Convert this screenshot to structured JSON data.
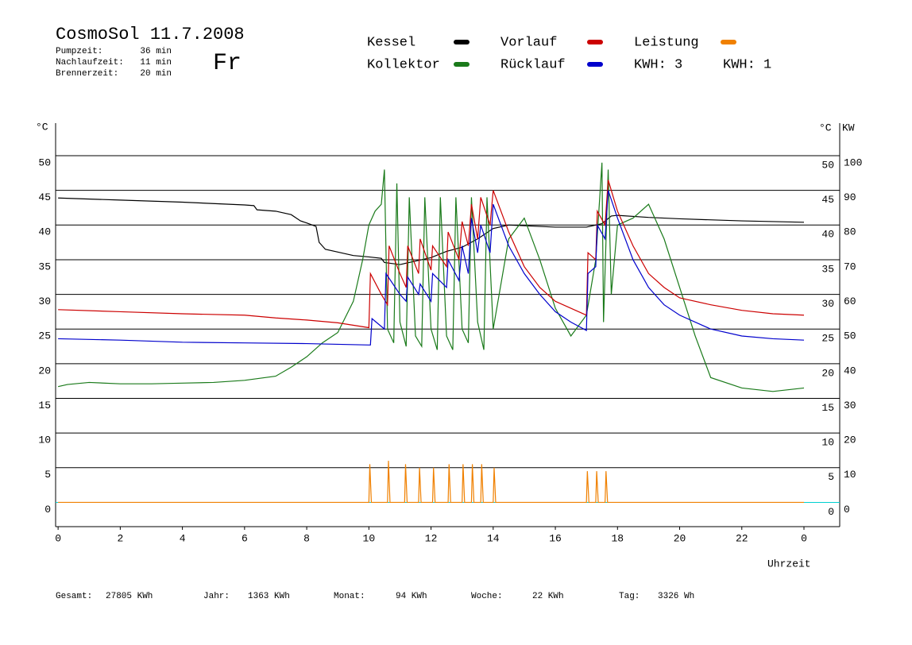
{
  "header": {
    "title": "CosmoSol 11.7.2008",
    "day": "Fr",
    "stats": [
      {
        "label": "Pumpzeit:",
        "value": "36 min"
      },
      {
        "label": "Nachlaufzeit:",
        "value": "11 min"
      },
      {
        "label": "Brennerzeit:",
        "value": "20 min"
      }
    ]
  },
  "footer": [
    {
      "label": "Gesamt:",
      "value": "27805 KWh"
    },
    {
      "label": "Jahr:",
      "value": "1363 KWh"
    },
    {
      "label": "Monat:",
      "value": "94 KWh"
    },
    {
      "label": "Woche:",
      "value": "22 KWh"
    },
    {
      "label": "Tag:",
      "value": "3326 Wh"
    }
  ],
  "chart_data": {
    "type": "line",
    "x_label": "Uhrzeit",
    "y_label": "°C",
    "y2_label": "°C",
    "y2_unit": "KW",
    "kwh_labels": [
      {
        "text": "KWH: 3",
        "color": "#e08a00"
      },
      {
        "text": "KWH: 1",
        "color": "#8a2a9a"
      }
    ],
    "xlim": [
      -0.08,
      25.15
    ],
    "xticks": [
      0,
      2,
      4,
      6,
      8,
      10,
      12,
      14,
      16,
      18,
      20,
      22,
      {
        "value": 24,
        "label": "0"
      }
    ],
    "ylim": [
      -3.5,
      54.7
    ],
    "yticks": [
      0,
      5,
      10,
      15,
      20,
      25,
      30,
      35,
      40,
      45,
      50
    ],
    "y2lim": [
      -7,
      109.4
    ],
    "y2ticks": [
      0,
      10,
      20,
      30,
      40,
      50,
      60,
      70,
      80,
      90,
      100
    ],
    "grid": true,
    "series": [
      {
        "name": "Kessel",
        "color": "#000000",
        "x": [
          0,
          2,
          4,
          6,
          6.3,
          6.4,
          7,
          7.5,
          7.8,
          8,
          8.3,
          8.4,
          8.6,
          9,
          9.5,
          10,
          10.4,
          10.5,
          11,
          11.5,
          12,
          12.5,
          13,
          13.5,
          14,
          14.5,
          16,
          17,
          17.5,
          17.8,
          18,
          19,
          20,
          22,
          24
        ],
        "values": [
          43.9,
          43.6,
          43.3,
          42.9,
          42.8,
          42.2,
          42,
          41.5,
          40.6,
          40.3,
          39.8,
          37.5,
          36.5,
          36.1,
          35.6,
          35.4,
          35.2,
          34.6,
          34.3,
          34.8,
          35.3,
          36.2,
          36.8,
          38,
          39.5,
          40,
          39.7,
          39.7,
          40.2,
          41.3,
          41.4,
          41.1,
          40.9,
          40.6,
          40.4
        ]
      },
      {
        "name": "Kollektor",
        "color": "#1a7a1a",
        "x": [
          0,
          0.3,
          1,
          2,
          3,
          4,
          5,
          6,
          7,
          7.5,
          8,
          8.5,
          9,
          9.5,
          9.8,
          10,
          10.2,
          10.4,
          10.5,
          10.6,
          10.8,
          10.9,
          11,
          11.2,
          11.3,
          11.5,
          11.7,
          11.8,
          12,
          12.2,
          12.3,
          12.5,
          12.7,
          12.8,
          13,
          13.2,
          13.3,
          13.5,
          13.7,
          13.8,
          14,
          14.5,
          15,
          15.5,
          16,
          16.5,
          17,
          17.3,
          17.5,
          17.55,
          17.7,
          17.8,
          18,
          18.5,
          19,
          19.5,
          20,
          20.5,
          21,
          22,
          23,
          24
        ],
        "values": [
          16.7,
          17,
          17.3,
          17.1,
          17.1,
          17.2,
          17.3,
          17.6,
          18.2,
          19.5,
          21,
          23,
          24.5,
          29,
          35,
          40,
          42,
          43,
          48,
          25,
          23,
          46,
          26,
          22.5,
          44,
          24,
          22.5,
          44,
          25,
          22,
          44,
          24,
          22,
          44,
          25,
          23,
          44,
          26,
          22,
          44,
          25,
          38,
          41,
          35,
          28,
          24,
          27,
          35,
          49,
          26,
          48,
          30,
          40,
          41,
          43,
          38,
          31,
          24,
          18,
          16.5,
          16,
          16.5
        ]
      },
      {
        "name": "Vorlauf",
        "color": "#cc0000",
        "x": [
          0,
          2,
          4,
          6,
          7,
          8,
          9,
          10,
          10.05,
          10.4,
          10.6,
          10.65,
          11,
          11.2,
          11.25,
          11.6,
          11.65,
          12,
          12.05,
          12.5,
          12.55,
          12.9,
          13,
          13.2,
          13.3,
          13.5,
          13.6,
          13.9,
          14,
          14.5,
          15,
          15.5,
          16,
          17,
          17.05,
          17.3,
          17.35,
          17.6,
          17.7,
          18,
          18.5,
          19,
          19.5,
          20,
          21,
          22,
          23,
          24
        ],
        "values": [
          27.8,
          27.5,
          27.2,
          27,
          26.6,
          26.3,
          25.9,
          25.2,
          33,
          30,
          28.5,
          37,
          33,
          31,
          37,
          33,
          38,
          33.5,
          37,
          34,
          39,
          35,
          40.5,
          37,
          43,
          38,
          44,
          40,
          45,
          39,
          34,
          31,
          29,
          27,
          36,
          35,
          42,
          40,
          46.5,
          42,
          37,
          33,
          31,
          29.5,
          28.5,
          27.7,
          27.2,
          27
        ]
      },
      {
        "name": "Rücklauf",
        "color": "#0000cc",
        "x": [
          0,
          2,
          4,
          6,
          8,
          10,
          10.05,
          10.1,
          10.5,
          10.55,
          11,
          11.2,
          11.25,
          11.6,
          11.65,
          12,
          12.05,
          12.5,
          12.55,
          12.9,
          13,
          13.2,
          13.3,
          13.5,
          13.6,
          13.9,
          14,
          14.5,
          15,
          15.5,
          16,
          16.5,
          17,
          17.05,
          17.3,
          17.35,
          17.6,
          17.7,
          18,
          18.5,
          19,
          19.5,
          20,
          21,
          22,
          23,
          24
        ],
        "values": [
          23.6,
          23.4,
          23.1,
          23,
          22.9,
          22.7,
          22.7,
          26.5,
          25,
          33,
          30,
          29,
          32.5,
          30,
          31.5,
          29,
          33,
          31,
          35,
          32,
          37,
          33,
          41,
          36,
          40,
          36,
          43,
          37,
          33,
          30,
          27.5,
          26,
          24.8,
          33,
          34,
          40,
          38,
          45,
          41,
          35,
          31,
          28.5,
          27,
          25,
          24,
          23.6,
          23.4
        ]
      },
      {
        "name": "Leistung",
        "color": "#f08000",
        "axis": "y2",
        "x": [
          0,
          10.0,
          10.03,
          10.08,
          10.6,
          10.63,
          10.68,
          11.15,
          11.18,
          11.23,
          11.6,
          11.63,
          11.68,
          12.05,
          12.08,
          12.13,
          12.55,
          12.58,
          12.63,
          13.0,
          13.03,
          13.08,
          13.3,
          13.33,
          13.38,
          13.6,
          13.63,
          13.68,
          14.0,
          14.03,
          14.08,
          17.0,
          17.03,
          17.08,
          17.3,
          17.33,
          17.38,
          17.6,
          17.63,
          17.68,
          24
        ],
        "values": [
          0,
          0,
          11,
          0,
          0,
          12,
          0,
          0,
          11,
          0,
          0,
          10,
          0,
          0,
          10,
          0,
          0,
          11,
          0,
          0,
          11,
          0,
          0,
          11,
          0,
          0,
          11,
          0,
          0,
          10,
          0,
          0,
          9,
          0,
          0,
          9,
          0,
          0,
          9,
          0,
          0
        ]
      }
    ]
  }
}
